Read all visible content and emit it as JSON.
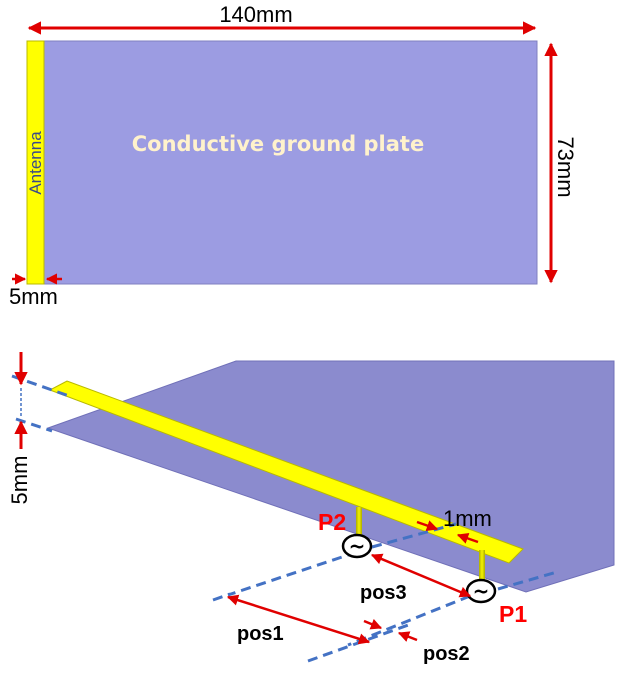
{
  "top_view": {
    "width_label": "140mm",
    "height_label": "73mm",
    "antenna_width_label": "5mm",
    "plate_label": "Conductive ground plate",
    "antenna_label": "Antenna"
  },
  "perspective_view": {
    "height_label": "5mm",
    "strip_width_label": "1mm",
    "port_labels": {
      "p1": "P1",
      "p2": "P2"
    },
    "source_symbol": "~",
    "position_labels": {
      "pos1": "pos1",
      "pos2": "pos2",
      "pos3": "pos3"
    }
  },
  "colors": {
    "ground_plate_top": "#9c9ce2",
    "ground_plate_3d": "#8b8bce",
    "antenna": "#ffff00",
    "antenna_edge": "#b8b800",
    "arrow": "#e00000",
    "dashed_line": "#4472c4",
    "plate_text": "#fff2cc",
    "antenna_text": "#3a4a8a",
    "port_text": "#ff0000"
  }
}
